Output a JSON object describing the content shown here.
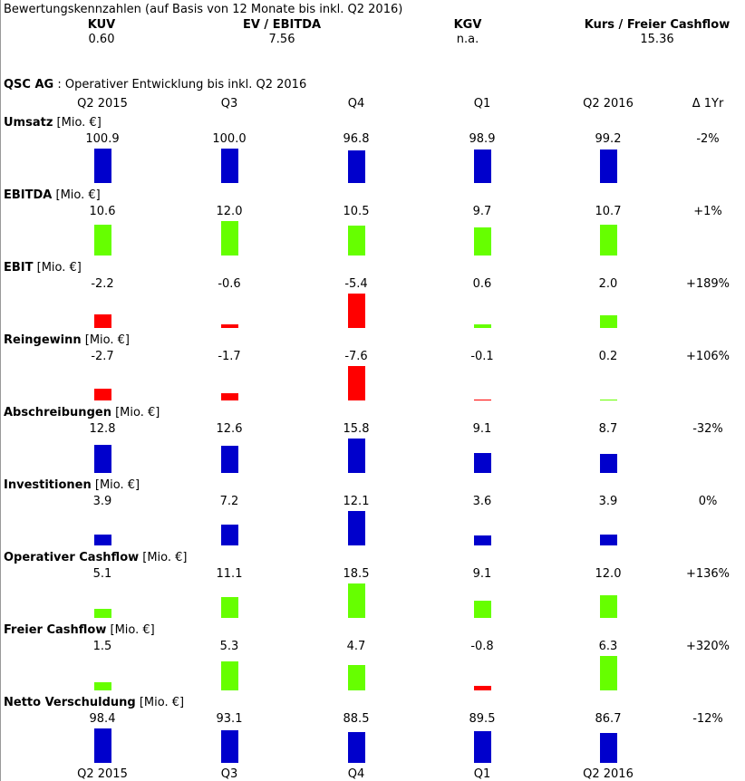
{
  "valuation": {
    "title": "Bewertungskennzahlen (auf Basis von 12 Monate bis inkl. Q2 2016)",
    "items": [
      {
        "label": "KUV",
        "value": "0.60"
      },
      {
        "label": "EV / EBITDA",
        "value": "7.56"
      },
      {
        "label": "KGV",
        "value": "n.a."
      },
      {
        "label": "Kurs / Freier Cashflow",
        "value": "15.36"
      }
    ]
  },
  "company": {
    "name": "QSC AG",
    "subtitle": " : Operativer Entwicklung bis inkl. Q2 2016"
  },
  "colors": {
    "positive": "#66ff00",
    "negative": "#ff0000",
    "neutral": "#0000cc"
  },
  "chart_data": {
    "type": "bar",
    "categories": [
      "Q2 2015",
      "Q3",
      "Q4",
      "Q1",
      "Q2 2016"
    ],
    "change_header": "Δ 1Yr",
    "metrics": [
      {
        "name": "Umsatz",
        "unit": "[Mio. €]",
        "values": [
          100.9,
          100.0,
          96.8,
          98.9,
          99.2
        ],
        "labels": [
          "100.9",
          "100.0",
          "96.8",
          "98.9",
          "99.2"
        ],
        "change": "-2%",
        "style": "neutral"
      },
      {
        "name": "EBITDA",
        "unit": "[Mio. €]",
        "values": [
          10.6,
          12.0,
          10.5,
          9.7,
          10.7
        ],
        "labels": [
          "10.6",
          "12.0",
          "10.5",
          "9.7",
          "10.7"
        ],
        "change": "+1%",
        "style": "signed"
      },
      {
        "name": "EBIT",
        "unit": "[Mio. €]",
        "values": [
          -2.2,
          -0.6,
          -5.4,
          0.6,
          2.0
        ],
        "labels": [
          "-2.2",
          "-0.6",
          "-5.4",
          "0.6",
          "2.0"
        ],
        "change": "+189%",
        "style": "signed"
      },
      {
        "name": "Reingewinn",
        "unit": "[Mio. €]",
        "values": [
          -2.7,
          -1.7,
          -7.6,
          -0.1,
          0.2
        ],
        "labels": [
          "-2.7",
          "-1.7",
          "-7.6",
          "-0.1",
          "0.2"
        ],
        "change": "+106%",
        "style": "signed"
      },
      {
        "name": "Abschreibungen",
        "unit": "[Mio. €]",
        "values": [
          12.8,
          12.6,
          15.8,
          9.1,
          8.7
        ],
        "labels": [
          "12.8",
          "12.6",
          "15.8",
          "9.1",
          "8.7"
        ],
        "change": "-32%",
        "style": "neutral"
      },
      {
        "name": "Investitionen",
        "unit": "[Mio. €]",
        "values": [
          3.9,
          7.2,
          12.1,
          3.6,
          3.9
        ],
        "labels": [
          "3.9",
          "7.2",
          "12.1",
          "3.6",
          "3.9"
        ],
        "change": "0%",
        "style": "neutral"
      },
      {
        "name": "Operativer Cashflow",
        "unit": "[Mio. €]",
        "values": [
          5.1,
          11.1,
          18.5,
          9.1,
          12.0
        ],
        "labels": [
          "5.1",
          "11.1",
          "18.5",
          "9.1",
          "12.0"
        ],
        "change": "+136%",
        "style": "signed"
      },
      {
        "name": "Freier Cashflow",
        "unit": "[Mio. €]",
        "values": [
          1.5,
          5.3,
          4.7,
          -0.8,
          6.3
        ],
        "labels": [
          "1.5",
          "5.3",
          "4.7",
          "-0.8",
          "6.3"
        ],
        "change": "+320%",
        "style": "signed"
      },
      {
        "name": "Netto Verschuldung",
        "unit": "[Mio. €]",
        "values": [
          98.4,
          93.1,
          88.5,
          89.5,
          86.7
        ],
        "labels": [
          "98.4",
          "93.1",
          "88.5",
          "89.5",
          "86.7"
        ],
        "change": "-12%",
        "style": "neutral"
      }
    ]
  }
}
